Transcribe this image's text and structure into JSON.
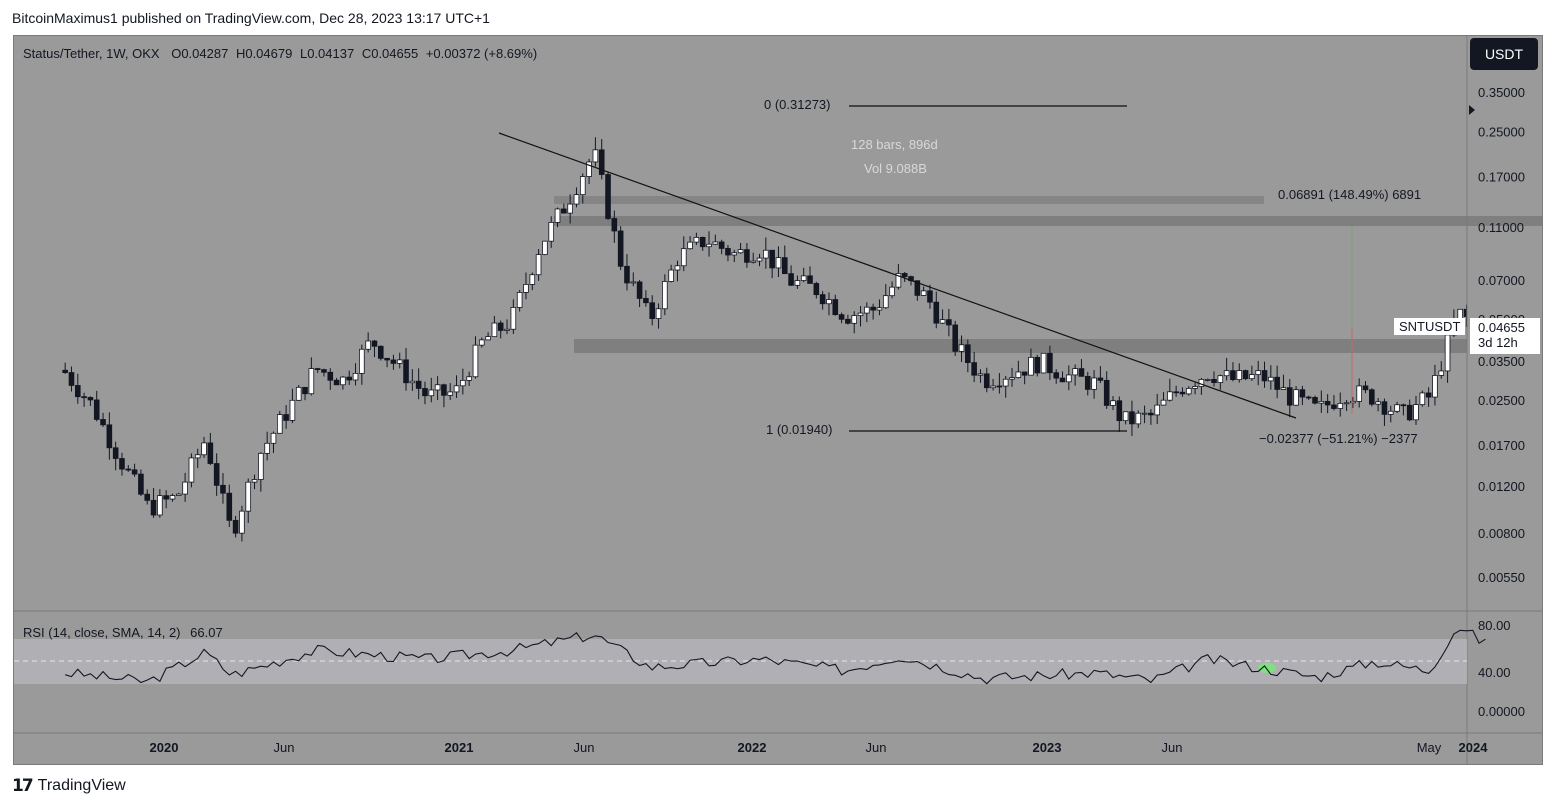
{
  "header": {
    "publisher": "BitcoinMaximus1 published on TradingView.com, Dec 28, 2023 13:17 UTC+1"
  },
  "legend": {
    "symbol": "Status/Tether, 1W, OKX",
    "o_label": "O",
    "o": "0.04287",
    "h_label": "H",
    "h": "0.04679",
    "l_label": "L",
    "l": "0.04137",
    "c_label": "C",
    "c": "0.04655",
    "change": "+0.00372 (+8.69%)"
  },
  "currency_button": "USDT",
  "price_tag": {
    "symbol": "SNTUSDT",
    "price": "0.04655",
    "countdown": "3d 12h"
  },
  "measure": {
    "bars": "128 bars, 896d",
    "vol": "Vol 9.088B"
  },
  "fib": {
    "level0": "0 (0.31273)",
    "level1": "1 (0.01940)"
  },
  "targets": {
    "up": "0.06891 (148.49%) 6891",
    "down": "−0.02377 (−51.21%) −2377"
  },
  "rsi": {
    "label": "RSI (14, close, SMA, 14, 2)",
    "value": "66.07"
  },
  "branding": {
    "logo_text": "TradingView"
  },
  "colors": {
    "background": "#9a9a9a",
    "up_candle": "#ffffff",
    "down_candle": "#131722",
    "rsi_band": "#b4b4b8",
    "rsi_signal": "#7ee07e"
  },
  "chart_data": {
    "type": "candlestick",
    "title": "Status/Tether, 1W, OKX",
    "price_scale": "log",
    "y_ticks": [
      "0.35000",
      "0.25000",
      "0.17000",
      "0.11000",
      "0.07000",
      "0.05000",
      "0.03500",
      "0.02500",
      "0.01700",
      "0.01200",
      "0.00800",
      "0.00550"
    ],
    "x_ticks": [
      "2020",
      "Jun",
      "2021",
      "Jun",
      "2022",
      "Jun",
      "2023",
      "Jun",
      "2024",
      "May"
    ],
    "rsi_ticks": [
      "80.00",
      "40.00",
      "0.00000"
    ],
    "rsi_band": [
      30,
      70
    ],
    "rsi_value": 66.07,
    "price_series": [
      {
        "date": "2019-09",
        "price": 0.032
      },
      {
        "date": "2019-10",
        "price": 0.024
      },
      {
        "date": "2019-11",
        "price": 0.015
      },
      {
        "date": "2019-12",
        "price": 0.01
      },
      {
        "date": "2020-01",
        "price": 0.011
      },
      {
        "date": "2020-02",
        "price": 0.018
      },
      {
        "date": "2020-03",
        "price": 0.008
      },
      {
        "date": "2020-04",
        "price": 0.016
      },
      {
        "date": "2020-05",
        "price": 0.023
      },
      {
        "date": "2020-06",
        "price": 0.033
      },
      {
        "date": "2020-07",
        "price": 0.03
      },
      {
        "date": "2020-08",
        "price": 0.042
      },
      {
        "date": "2020-09",
        "price": 0.033
      },
      {
        "date": "2020-10",
        "price": 0.026
      },
      {
        "date": "2020-11",
        "price": 0.027
      },
      {
        "date": "2020-12",
        "price": 0.042
      },
      {
        "date": "2021-01",
        "price": 0.05
      },
      {
        "date": "2021-02",
        "price": 0.095
      },
      {
        "date": "2021-03",
        "price": 0.135
      },
      {
        "date": "2021-04",
        "price": 0.21
      },
      {
        "date": "2021-05",
        "price": 0.08
      },
      {
        "date": "2021-06",
        "price": 0.05
      },
      {
        "date": "2021-07",
        "price": 0.085
      },
      {
        "date": "2021-08",
        "price": 0.1
      },
      {
        "date": "2021-09",
        "price": 0.088
      },
      {
        "date": "2021-10",
        "price": 0.092
      },
      {
        "date": "2021-11",
        "price": 0.07
      },
      {
        "date": "2021-12",
        "price": 0.065
      },
      {
        "date": "2022-01",
        "price": 0.052
      },
      {
        "date": "2022-02",
        "price": 0.055
      },
      {
        "date": "2022-03",
        "price": 0.072
      },
      {
        "date": "2022-04",
        "price": 0.06
      },
      {
        "date": "2022-05",
        "price": 0.04
      },
      {
        "date": "2022-06",
        "price": 0.03
      },
      {
        "date": "2022-07",
        "price": 0.032
      },
      {
        "date": "2022-08",
        "price": 0.035
      },
      {
        "date": "2022-09",
        "price": 0.031
      },
      {
        "date": "2022-10",
        "price": 0.029
      },
      {
        "date": "2022-11",
        "price": 0.021
      },
      {
        "date": "2022-12",
        "price": 0.022
      },
      {
        "date": "2023-01",
        "price": 0.028
      },
      {
        "date": "2023-02",
        "price": 0.032
      },
      {
        "date": "2023-03",
        "price": 0.03
      },
      {
        "date": "2023-04",
        "price": 0.031
      },
      {
        "date": "2023-05",
        "price": 0.026
      },
      {
        "date": "2023-06",
        "price": 0.023
      },
      {
        "date": "2023-07",
        "price": 0.027
      },
      {
        "date": "2023-08",
        "price": 0.026
      },
      {
        "date": "2023-09",
        "price": 0.022
      },
      {
        "date": "2023-10",
        "price": 0.026
      },
      {
        "date": "2023-11",
        "price": 0.053
      },
      {
        "date": "2023-12",
        "price": 0.0465
      }
    ],
    "rsi_series": [
      {
        "date": "2019-09",
        "rsi": 40
      },
      {
        "date": "2019-12",
        "rsi": 32
      },
      {
        "date": "2020-02",
        "rsi": 58
      },
      {
        "date": "2020-03",
        "rsi": 38
      },
      {
        "date": "2020-06",
        "rsi": 60
      },
      {
        "date": "2020-10",
        "rsi": 52
      },
      {
        "date": "2021-01",
        "rsi": 60
      },
      {
        "date": "2021-04",
        "rsi": 74
      },
      {
        "date": "2021-06",
        "rsi": 45
      },
      {
        "date": "2021-10",
        "rsi": 52
      },
      {
        "date": "2022-01",
        "rsi": 42
      },
      {
        "date": "2022-03",
        "rsi": 55
      },
      {
        "date": "2022-06",
        "rsi": 35
      },
      {
        "date": "2022-10",
        "rsi": 40
      },
      {
        "date": "2022-12",
        "rsi": 33
      },
      {
        "date": "2023-02",
        "rsi": 52
      },
      {
        "date": "2023-06",
        "rsi": 36
      },
      {
        "date": "2023-08",
        "rsi": 50
      },
      {
        "date": "2023-10",
        "rsi": 42
      },
      {
        "date": "2023-11",
        "rsi": 82
      },
      {
        "date": "2023-12",
        "rsi": 66
      }
    ],
    "horizontal_zones": [
      0.038,
      0.11,
      0.14
    ],
    "trendline": {
      "from": {
        "date": "2021-03",
        "price": 0.25
      },
      "to": {
        "date": "2023-11",
        "price": 0.024
      }
    },
    "fib_levels": [
      0.31273,
      0.0194
    ]
  }
}
